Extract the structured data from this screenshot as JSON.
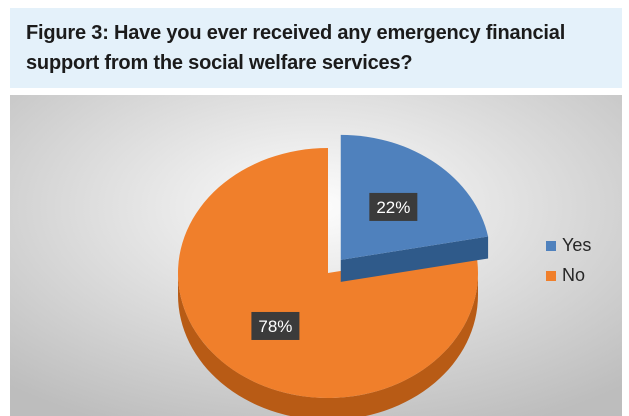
{
  "figure": {
    "title_line1": "Figure 3: Have you ever received any emergency financial",
    "title_line2": "support from the social welfare services?"
  },
  "colors": {
    "yes": "#4f81bd",
    "yes_dark": "#2f5a8a",
    "no": "#f07f2b",
    "no_dark": "#b85b15",
    "label_bg": "#3b3b3b",
    "chart_bg_top": "#fdfdfd",
    "chart_bg_bottom": "#bdbdbd"
  },
  "chart_data": {
    "type": "pie",
    "title": "Figure 3: Have you ever received any emergency financial support from the social welfare services?",
    "categories": [
      "Yes",
      "No"
    ],
    "values": [
      22,
      78
    ],
    "data_labels": [
      "22%",
      "78%"
    ],
    "exploded": "Yes",
    "style": "3d",
    "legend": {
      "position": "right",
      "entries": [
        "Yes",
        "No"
      ]
    }
  }
}
